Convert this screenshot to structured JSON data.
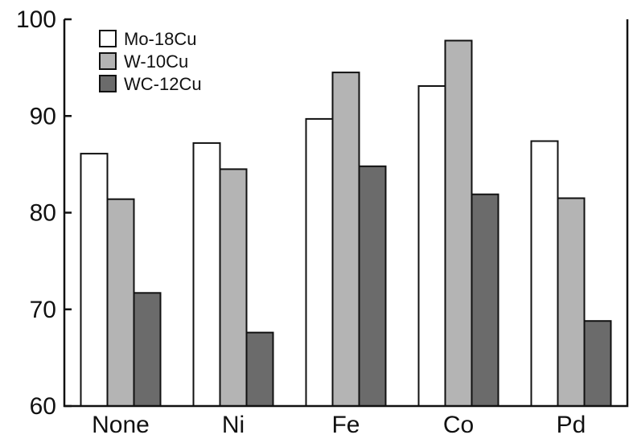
{
  "chart_data": {
    "type": "bar",
    "categories": [
      "None",
      "Ni",
      "Fe",
      "Co",
      "Pd"
    ],
    "series": [
      {
        "name": "Mo-18Cu",
        "values": [
          86.1,
          87.2,
          89.7,
          93.1,
          87.4
        ],
        "color": "#ffffff"
      },
      {
        "name": "W-10Cu",
        "values": [
          81.4,
          84.5,
          94.5,
          97.8,
          81.5
        ],
        "color": "#b4b4b4"
      },
      {
        "name": "WC-12Cu",
        "values": [
          71.7,
          67.6,
          84.8,
          81.9,
          68.8
        ],
        "color": "#6b6b6b"
      }
    ],
    "yticks": [
      60,
      70,
      80,
      90,
      100
    ],
    "ylim": [
      60,
      100
    ],
    "title": "",
    "xlabel": "",
    "ylabel": "",
    "legend_position": "top-left",
    "grid": false
  }
}
